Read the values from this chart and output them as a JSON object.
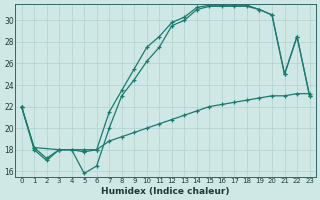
{
  "title": "",
  "xlabel": "Humidex (Indice chaleur)",
  "ylabel": "",
  "background_color": "#cfe8e6",
  "grid_color": "#b0d0ce",
  "line_color": "#1a7a6e",
  "xlim": [
    -0.5,
    23.5
  ],
  "ylim": [
    15.5,
    31.5
  ],
  "xticks": [
    0,
    1,
    2,
    3,
    4,
    5,
    6,
    7,
    8,
    9,
    10,
    11,
    12,
    13,
    14,
    15,
    16,
    17,
    18,
    19,
    20,
    21,
    22,
    23
  ],
  "yticks": [
    16,
    18,
    20,
    22,
    24,
    26,
    28,
    30
  ],
  "line1_x": [
    0,
    1,
    2,
    3,
    4,
    5,
    6,
    7,
    8,
    9,
    10,
    11,
    12,
    13,
    14,
    15,
    16,
    17,
    18,
    19,
    20,
    21,
    22,
    23
  ],
  "line1_y": [
    22,
    18.2,
    17.2,
    18.0,
    18.0,
    17.8,
    18.0,
    18.8,
    19.2,
    19.6,
    20.0,
    20.4,
    20.8,
    21.2,
    21.6,
    22.0,
    22.2,
    22.4,
    22.6,
    22.8,
    23.0,
    23.0,
    23.2,
    23.2
  ],
  "line2_x": [
    0,
    1,
    2,
    3,
    4,
    5,
    6,
    7,
    8,
    9,
    10,
    11,
    12,
    13,
    14,
    15,
    16,
    17,
    18,
    19,
    20,
    21,
    22,
    23
  ],
  "line2_y": [
    22,
    18,
    17,
    18,
    18,
    15.8,
    16.5,
    20.0,
    23.0,
    24.5,
    26.2,
    27.5,
    29.5,
    30.0,
    31.0,
    31.3,
    31.3,
    31.3,
    31.3,
    31.0,
    30.5,
    25.0,
    28.5,
    23.0
  ],
  "line3_x": [
    0,
    1,
    3,
    5,
    6,
    7,
    8,
    9,
    10,
    11,
    12,
    13,
    14,
    15,
    16,
    17,
    18,
    19,
    20,
    21,
    22,
    23
  ],
  "line3_y": [
    22,
    18.2,
    18.0,
    18.0,
    18.0,
    21.5,
    23.5,
    25.5,
    27.5,
    28.5,
    29.8,
    30.3,
    31.2,
    31.4,
    31.4,
    31.4,
    31.4,
    31.0,
    30.5,
    25.0,
    28.5,
    23.0
  ]
}
